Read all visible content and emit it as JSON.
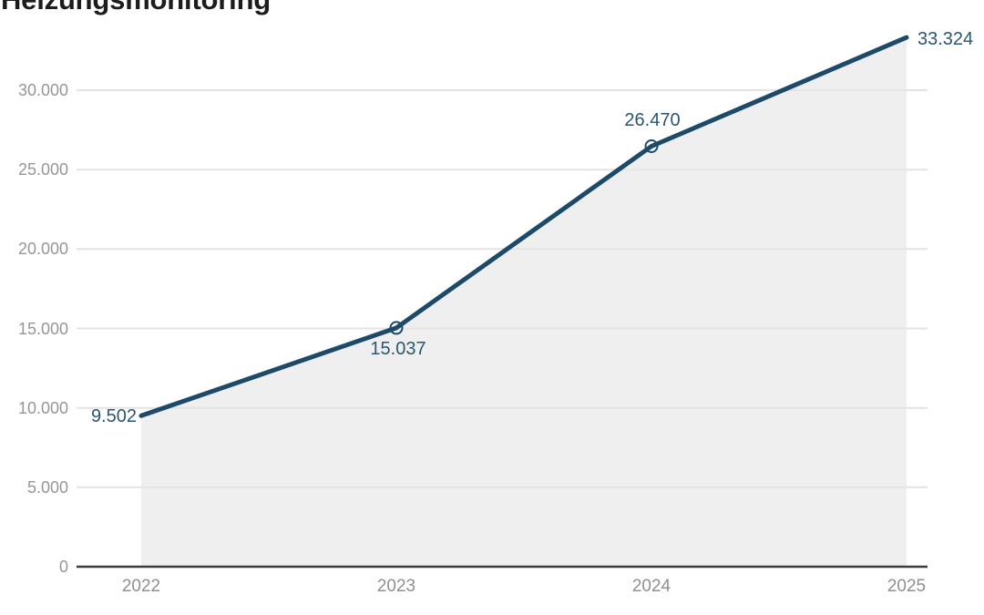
{
  "title": "Heizungsmonitoring",
  "chart_data": {
    "type": "area",
    "title": "Heizungsmonitoring",
    "categories": [
      "2022",
      "2023",
      "2024",
      "2025"
    ],
    "series": [
      {
        "name": "Heizungsmonitoring",
        "values": [
          9502,
          15037,
          26470,
          33324
        ]
      }
    ],
    "values": [
      9502,
      15037,
      26470,
      33324
    ],
    "value_labels": [
      "9.502",
      "15.037",
      "26.470",
      "33.324"
    ],
    "y_ticks": [
      0,
      5000,
      10000,
      15000,
      20000,
      25000,
      30000
    ],
    "y_tick_labels": [
      "0",
      "5.000",
      "10.000",
      "15.000",
      "20.000",
      "25.000",
      "30.000"
    ],
    "ylim": [
      0,
      33500
    ],
    "xlabel": "",
    "ylabel": "",
    "grid": true,
    "legend": "none",
    "markers_on": [
      "2023",
      "2024"
    ],
    "colors": {
      "line": "#1d4a68",
      "area": "#efefef",
      "value_label": "#2b5670",
      "grid_line": "#e4e4e4",
      "axis": "#3c3c3c",
      "tick_label": "#969696",
      "title": "#1c1c1c"
    }
  }
}
